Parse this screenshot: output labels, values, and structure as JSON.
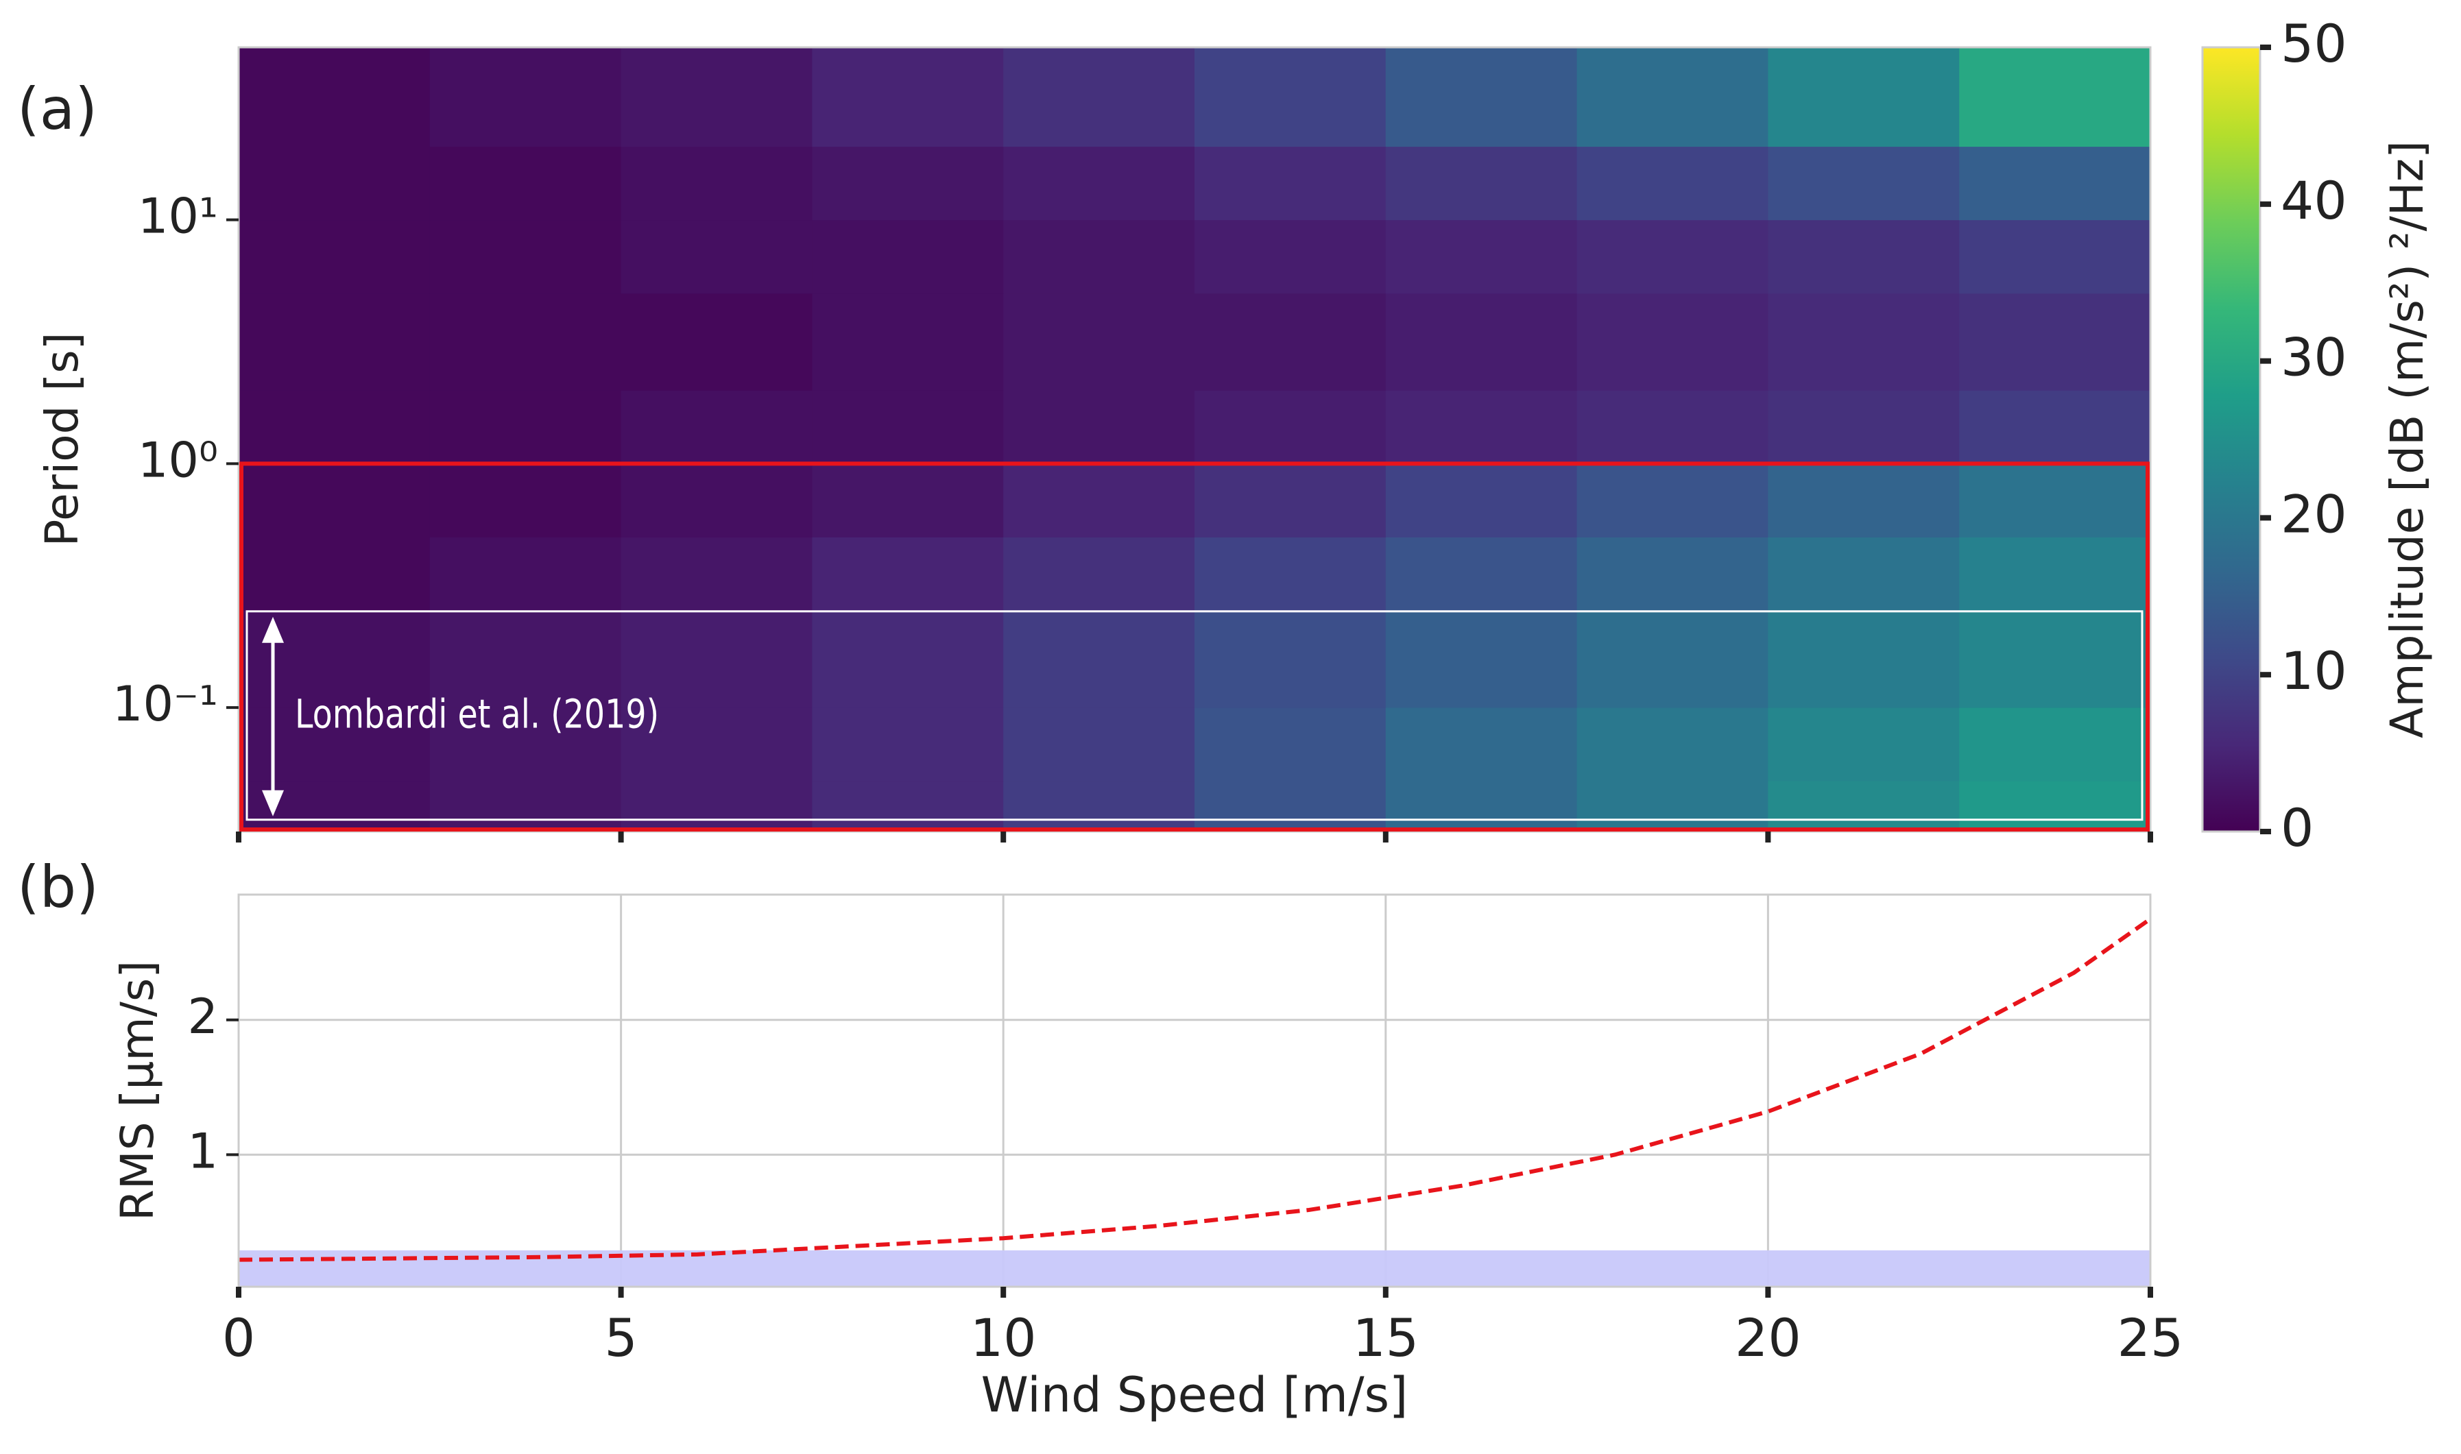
{
  "chart_data": [
    {
      "type": "heatmap",
      "panel_label": "(a)",
      "ylabel": "Period [s]",
      "yscale": "log",
      "colormap": "viridis",
      "x_edges": [
        0,
        2.5,
        5,
        7.5,
        10,
        12.5,
        15,
        17.5,
        20,
        22.5,
        25
      ],
      "y_edges": [
        0.031,
        0.05,
        0.1,
        0.25,
        0.5,
        1,
        2,
        5,
        10,
        20,
        51
      ],
      "values": [
        [
          2,
          3,
          4,
          6,
          9,
          13,
          17,
          20,
          24,
          27
        ],
        [
          2,
          3,
          4,
          6,
          9,
          13,
          17,
          20,
          23,
          26
        ],
        [
          2,
          3,
          4,
          6,
          9,
          12,
          15,
          18,
          21,
          23
        ],
        [
          1,
          2,
          3,
          5,
          7,
          10,
          13,
          16,
          19,
          22
        ],
        [
          1,
          1,
          2,
          3,
          5,
          7,
          10,
          13,
          16,
          19
        ],
        [
          1,
          1,
          2,
          2,
          3,
          4,
          5,
          6,
          7,
          9
        ],
        [
          1,
          1,
          1,
          2,
          3,
          3,
          4,
          5,
          6,
          7
        ],
        [
          1,
          1,
          2,
          2,
          3,
          4,
          5,
          6,
          7,
          9
        ],
        [
          1,
          1,
          2,
          3,
          4,
          6,
          8,
          10,
          12,
          15
        ],
        [
          1,
          2,
          3,
          5,
          7,
          10,
          14,
          18,
          23,
          30
        ]
      ],
      "xlim": [
        0,
        25
      ],
      "xticks": [
        0,
        5,
        10,
        15,
        20,
        25
      ],
      "ylim": [
        0.031,
        51
      ],
      "yticks": [
        {
          "value": 0.1,
          "label": "10⁻¹"
        },
        {
          "value": 1,
          "label": "10⁰"
        },
        {
          "value": 10,
          "label": "10¹"
        }
      ],
      "colorbar": {
        "label": "Amplitude [dB (m/s²) ²/Hz]",
        "lim": [
          0,
          50
        ],
        "ticks": [
          0,
          10,
          20,
          30,
          40,
          50
        ]
      },
      "regions": [
        {
          "y": [
            0.031,
            1
          ],
          "color": "#e8141b"
        },
        {
          "y": [
            0.034,
            0.248
          ],
          "color": "#ffffff"
        }
      ],
      "annotation": {
        "text": "Lombardi et al. (2019)",
        "y": [
          0.034,
          0.248
        ]
      }
    },
    {
      "type": "line",
      "panel_label": "(b)",
      "xlabel": "Wind Speed [m/s]",
      "ylabel": "RMS [µm/s]",
      "x": [
        0,
        2,
        4,
        6,
        8,
        10,
        12,
        14,
        16,
        18,
        20,
        22,
        24,
        25
      ],
      "series": [
        {
          "color": "#e8141b",
          "values": [
            0.22,
            0.23,
            0.24,
            0.26,
            0.32,
            0.38,
            0.47,
            0.59,
            0.77,
            1.0,
            1.32,
            1.75,
            2.35,
            2.75
          ]
        }
      ],
      "band": {
        "y": [
          0.02,
          0.29
        ],
        "color": "#c8c8fa"
      },
      "xlim": [
        0,
        25
      ],
      "xticks": [
        0,
        5,
        10,
        15,
        20,
        25
      ],
      "ylim": [
        0.02,
        2.93
      ],
      "yticks": [
        1,
        2
      ],
      "grid": true
    }
  ]
}
